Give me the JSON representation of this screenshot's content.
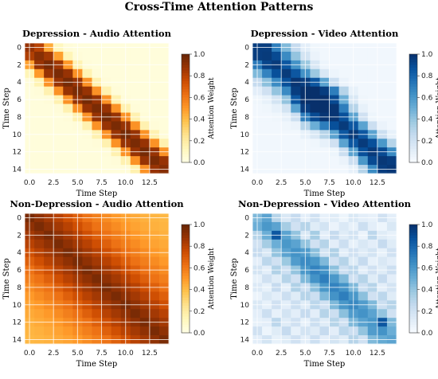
{
  "title": "Cross-Time Attention Patterns",
  "colorbar_label": "Attention Weight",
  "chart_data": [
    {
      "type": "heatmap",
      "title": "Depression - Audio Attention",
      "xlabel": "Time Step",
      "ylabel": "Time Step",
      "colormap": "YlOrBr",
      "x_ticks": [
        0.0,
        2.5,
        5.0,
        7.5,
        10.0,
        12.5
      ],
      "x_tick_labels": [
        "0.0",
        "2.5",
        "5.0",
        "7.5",
        "10.0",
        "12.5"
      ],
      "y_ticks": [
        0,
        2,
        4,
        6,
        8,
        10,
        12,
        14
      ],
      "y_tick_labels": [
        "0",
        "2",
        "4",
        "6",
        "8",
        "10",
        "12",
        "14"
      ],
      "colorbar_ticks": [
        "0.0",
        "0.2",
        "0.4",
        "0.6",
        "0.8",
        "1.0"
      ],
      "zlim": [
        0,
        1
      ],
      "grid": true,
      "values": [
        [
          0.88,
          0.8,
          0.45,
          0.12,
          0.04,
          0.03,
          0.03,
          0.03,
          0.03,
          0.03,
          0.03,
          0.03,
          0.03,
          0.03,
          0.03
        ],
        [
          0.82,
          0.92,
          0.85,
          0.48,
          0.14,
          0.04,
          0.03,
          0.03,
          0.03,
          0.03,
          0.03,
          0.03,
          0.03,
          0.03,
          0.03
        ],
        [
          0.48,
          0.88,
          0.95,
          0.86,
          0.5,
          0.15,
          0.04,
          0.03,
          0.03,
          0.03,
          0.03,
          0.03,
          0.03,
          0.03,
          0.03
        ],
        [
          0.14,
          0.5,
          0.88,
          0.95,
          0.88,
          0.52,
          0.15,
          0.04,
          0.03,
          0.03,
          0.03,
          0.03,
          0.03,
          0.03,
          0.03
        ],
        [
          0.04,
          0.15,
          0.52,
          0.88,
          0.96,
          0.88,
          0.52,
          0.16,
          0.04,
          0.03,
          0.03,
          0.03,
          0.03,
          0.03,
          0.03
        ],
        [
          0.03,
          0.04,
          0.16,
          0.52,
          0.88,
          0.95,
          0.88,
          0.52,
          0.16,
          0.04,
          0.03,
          0.03,
          0.03,
          0.03,
          0.03
        ],
        [
          0.03,
          0.03,
          0.04,
          0.16,
          0.52,
          0.88,
          0.96,
          0.88,
          0.52,
          0.16,
          0.04,
          0.03,
          0.03,
          0.03,
          0.03
        ],
        [
          0.03,
          0.03,
          0.03,
          0.04,
          0.16,
          0.52,
          0.88,
          0.95,
          0.88,
          0.52,
          0.16,
          0.04,
          0.03,
          0.03,
          0.03
        ],
        [
          0.03,
          0.03,
          0.03,
          0.03,
          0.04,
          0.16,
          0.52,
          0.88,
          0.96,
          0.88,
          0.52,
          0.16,
          0.04,
          0.03,
          0.03
        ],
        [
          0.03,
          0.03,
          0.03,
          0.03,
          0.03,
          0.04,
          0.16,
          0.52,
          0.88,
          0.95,
          0.88,
          0.52,
          0.16,
          0.04,
          0.03
        ],
        [
          0.03,
          0.03,
          0.03,
          0.03,
          0.03,
          0.03,
          0.04,
          0.16,
          0.52,
          0.88,
          0.96,
          0.88,
          0.52,
          0.16,
          0.04
        ],
        [
          0.03,
          0.03,
          0.03,
          0.03,
          0.03,
          0.03,
          0.03,
          0.04,
          0.16,
          0.52,
          0.88,
          0.95,
          0.88,
          0.52,
          0.16
        ],
        [
          0.03,
          0.03,
          0.03,
          0.03,
          0.03,
          0.03,
          0.03,
          0.03,
          0.04,
          0.16,
          0.52,
          0.88,
          0.96,
          0.88,
          0.52
        ],
        [
          0.03,
          0.03,
          0.03,
          0.03,
          0.03,
          0.03,
          0.03,
          0.03,
          0.03,
          0.04,
          0.16,
          0.52,
          0.88,
          0.95,
          0.88
        ],
        [
          0.03,
          0.03,
          0.03,
          0.03,
          0.03,
          0.03,
          0.03,
          0.03,
          0.03,
          0.03,
          0.04,
          0.16,
          0.52,
          0.88,
          0.92
        ]
      ]
    },
    {
      "type": "heatmap",
      "title": "Depression - Video Attention",
      "xlabel": "Time Step",
      "ylabel": "Time Step",
      "colormap": "Blues",
      "x_ticks": [
        0.0,
        2.5,
        5.0,
        7.5,
        10.0,
        12.5
      ],
      "x_tick_labels": [
        "0.0",
        "2.5",
        "5.0",
        "7.5",
        "10.0",
        "12.5"
      ],
      "y_ticks": [
        0,
        2,
        4,
        6,
        8,
        10,
        12,
        14
      ],
      "y_tick_labels": [
        "0",
        "2",
        "4",
        "6",
        "8",
        "10",
        "12",
        "14"
      ],
      "colorbar_ticks": [
        "0.0",
        "0.2",
        "0.4",
        "0.6",
        "0.8",
        "1.0"
      ],
      "zlim": [
        0,
        1
      ],
      "grid": true,
      "values": [
        [
          0.95,
          0.95,
          0.7,
          0.45,
          0.25,
          0.1,
          0.04,
          0.03,
          0.03,
          0.03,
          0.03,
          0.03,
          0.03,
          0.03,
          0.03
        ],
        [
          0.95,
          0.96,
          0.9,
          0.65,
          0.4,
          0.18,
          0.06,
          0.03,
          0.03,
          0.03,
          0.03,
          0.03,
          0.03,
          0.03,
          0.03
        ],
        [
          0.72,
          0.92,
          0.96,
          0.85,
          0.62,
          0.38,
          0.15,
          0.05,
          0.03,
          0.03,
          0.03,
          0.03,
          0.03,
          0.03,
          0.03
        ],
        [
          0.45,
          0.68,
          0.88,
          0.96,
          0.85,
          0.62,
          0.38,
          0.15,
          0.05,
          0.03,
          0.03,
          0.03,
          0.03,
          0.03,
          0.03
        ],
        [
          0.25,
          0.42,
          0.65,
          0.88,
          0.98,
          0.95,
          0.85,
          0.55,
          0.22,
          0.06,
          0.03,
          0.03,
          0.03,
          0.03,
          0.03
        ],
        [
          0.1,
          0.2,
          0.4,
          0.65,
          0.95,
          1.0,
          1.0,
          0.95,
          0.7,
          0.3,
          0.08,
          0.03,
          0.03,
          0.03,
          0.03
        ],
        [
          0.04,
          0.08,
          0.18,
          0.4,
          0.85,
          1.0,
          1.0,
          1.0,
          0.9,
          0.5,
          0.15,
          0.04,
          0.03,
          0.03,
          0.03
        ],
        [
          0.03,
          0.04,
          0.08,
          0.18,
          0.55,
          0.95,
          1.0,
          1.0,
          0.98,
          0.7,
          0.3,
          0.08,
          0.03,
          0.03,
          0.03
        ],
        [
          0.03,
          0.03,
          0.04,
          0.08,
          0.22,
          0.7,
          0.9,
          0.98,
          0.98,
          0.88,
          0.55,
          0.2,
          0.05,
          0.03,
          0.03
        ],
        [
          0.03,
          0.03,
          0.03,
          0.04,
          0.06,
          0.3,
          0.5,
          0.7,
          0.88,
          0.96,
          0.85,
          0.55,
          0.22,
          0.06,
          0.03
        ],
        [
          0.03,
          0.03,
          0.03,
          0.03,
          0.03,
          0.08,
          0.15,
          0.3,
          0.55,
          0.85,
          0.96,
          0.85,
          0.55,
          0.22,
          0.08
        ],
        [
          0.03,
          0.03,
          0.03,
          0.03,
          0.03,
          0.03,
          0.04,
          0.08,
          0.2,
          0.55,
          0.85,
          0.96,
          0.88,
          0.6,
          0.3
        ],
        [
          0.03,
          0.03,
          0.03,
          0.03,
          0.03,
          0.03,
          0.03,
          0.03,
          0.05,
          0.22,
          0.55,
          0.88,
          0.96,
          0.9,
          0.65
        ],
        [
          0.03,
          0.03,
          0.03,
          0.03,
          0.03,
          0.03,
          0.03,
          0.03,
          0.03,
          0.06,
          0.22,
          0.6,
          0.9,
          0.97,
          0.95
        ],
        [
          0.03,
          0.03,
          0.03,
          0.03,
          0.03,
          0.03,
          0.03,
          0.03,
          0.03,
          0.03,
          0.08,
          0.3,
          0.65,
          0.95,
          0.97
        ]
      ]
    },
    {
      "type": "heatmap",
      "title": "Non-Depression - Audio Attention",
      "xlabel": "Time Step",
      "ylabel": "Time Step",
      "colormap": "YlOrBr",
      "x_ticks": [
        0.0,
        2.5,
        5.0,
        7.5,
        10.0,
        12.5
      ],
      "x_tick_labels": [
        "0.0",
        "2.5",
        "5.0",
        "7.5",
        "10.0",
        "12.5"
      ],
      "y_ticks": [
        0,
        2,
        4,
        6,
        8,
        10,
        12,
        14
      ],
      "y_tick_labels": [
        "0",
        "2",
        "4",
        "6",
        "8",
        "10",
        "12",
        "14"
      ],
      "colorbar_ticks": [
        "0.0",
        "0.2",
        "0.4",
        "0.6",
        "0.8",
        "1.0"
      ],
      "zlim": [
        0,
        1
      ],
      "grid": true,
      "values": [
        [
          0.95,
          0.9,
          0.85,
          0.8,
          0.74,
          0.68,
          0.62,
          0.58,
          0.54,
          0.5,
          0.47,
          0.45,
          0.43,
          0.42,
          0.41
        ],
        [
          0.9,
          0.95,
          0.9,
          0.85,
          0.8,
          0.74,
          0.68,
          0.62,
          0.58,
          0.54,
          0.5,
          0.47,
          0.45,
          0.43,
          0.42
        ],
        [
          0.85,
          0.9,
          0.95,
          0.9,
          0.85,
          0.8,
          0.74,
          0.68,
          0.62,
          0.58,
          0.54,
          0.5,
          0.47,
          0.45,
          0.43
        ],
        [
          0.8,
          0.85,
          0.9,
          0.95,
          0.9,
          0.85,
          0.8,
          0.74,
          0.68,
          0.62,
          0.58,
          0.54,
          0.5,
          0.47,
          0.45
        ],
        [
          0.74,
          0.8,
          0.85,
          0.9,
          0.95,
          0.9,
          0.85,
          0.8,
          0.74,
          0.68,
          0.62,
          0.58,
          0.54,
          0.5,
          0.47
        ],
        [
          0.68,
          0.74,
          0.8,
          0.85,
          0.9,
          0.95,
          0.9,
          0.85,
          0.8,
          0.74,
          0.68,
          0.62,
          0.58,
          0.54,
          0.5
        ],
        [
          0.62,
          0.68,
          0.74,
          0.8,
          0.85,
          0.9,
          0.95,
          0.9,
          0.85,
          0.8,
          0.74,
          0.68,
          0.62,
          0.58,
          0.54
        ],
        [
          0.58,
          0.62,
          0.68,
          0.74,
          0.8,
          0.85,
          0.9,
          0.95,
          0.9,
          0.85,
          0.8,
          0.74,
          0.68,
          0.62,
          0.58
        ],
        [
          0.54,
          0.58,
          0.62,
          0.68,
          0.74,
          0.8,
          0.85,
          0.9,
          0.95,
          0.9,
          0.85,
          0.8,
          0.74,
          0.68,
          0.62
        ],
        [
          0.5,
          0.54,
          0.58,
          0.62,
          0.68,
          0.74,
          0.8,
          0.85,
          0.9,
          0.95,
          0.9,
          0.85,
          0.8,
          0.74,
          0.68
        ],
        [
          0.47,
          0.5,
          0.54,
          0.58,
          0.62,
          0.68,
          0.74,
          0.8,
          0.85,
          0.9,
          0.95,
          0.9,
          0.85,
          0.8,
          0.74
        ],
        [
          0.45,
          0.47,
          0.5,
          0.54,
          0.58,
          0.62,
          0.68,
          0.74,
          0.8,
          0.85,
          0.9,
          0.95,
          0.9,
          0.85,
          0.8
        ],
        [
          0.43,
          0.45,
          0.47,
          0.5,
          0.54,
          0.58,
          0.62,
          0.68,
          0.74,
          0.8,
          0.85,
          0.9,
          0.95,
          0.9,
          0.85
        ],
        [
          0.42,
          0.43,
          0.45,
          0.47,
          0.5,
          0.54,
          0.58,
          0.62,
          0.68,
          0.74,
          0.8,
          0.85,
          0.9,
          0.95,
          0.9
        ],
        [
          0.41,
          0.42,
          0.43,
          0.45,
          0.47,
          0.5,
          0.54,
          0.58,
          0.62,
          0.68,
          0.74,
          0.8,
          0.85,
          0.9,
          0.95
        ]
      ]
    },
    {
      "type": "heatmap",
      "title": "Non-Depression - Video Attention",
      "xlabel": "Time Step",
      "ylabel": "Time Step",
      "colormap": "Blues",
      "x_ticks": [
        0.0,
        2.5,
        5.0,
        7.5,
        10.0,
        12.5
      ],
      "x_tick_labels": [
        "0.0",
        "2.5",
        "5.0",
        "7.5",
        "10.0",
        "12.5"
      ],
      "y_ticks": [
        0,
        2,
        4,
        6,
        8,
        10,
        12,
        14
      ],
      "y_tick_labels": [
        "0",
        "2",
        "4",
        "6",
        "8",
        "10",
        "12",
        "14"
      ],
      "colorbar_ticks": [
        "0.0",
        "0.2",
        "0.4",
        "0.6",
        "0.8",
        "1.0"
      ],
      "zlim": [
        0,
        1
      ],
      "grid": true,
      "values": [
        [
          0.45,
          0.55,
          0.3,
          0.15,
          0.25,
          0.1,
          0.2,
          0.08,
          0.12,
          0.05,
          0.15,
          0.1,
          0.08,
          0.2,
          0.1
        ],
        [
          0.5,
          0.6,
          0.55,
          0.35,
          0.2,
          0.3,
          0.12,
          0.18,
          0.06,
          0.14,
          0.08,
          0.22,
          0.1,
          0.05,
          0.15
        ],
        [
          0.3,
          0.5,
          0.85,
          0.55,
          0.4,
          0.15,
          0.35,
          0.1,
          0.25,
          0.12,
          0.18,
          0.06,
          0.28,
          0.12,
          0.08
        ],
        [
          0.2,
          0.35,
          0.5,
          0.6,
          0.55,
          0.4,
          0.2,
          0.3,
          0.1,
          0.22,
          0.08,
          0.15,
          0.1,
          0.25,
          0.12
        ],
        [
          0.25,
          0.15,
          0.4,
          0.55,
          0.62,
          0.58,
          0.42,
          0.18,
          0.32,
          0.1,
          0.2,
          0.12,
          0.18,
          0.08,
          0.2
        ],
        [
          0.1,
          0.28,
          0.2,
          0.38,
          0.58,
          0.65,
          0.6,
          0.45,
          0.2,
          0.3,
          0.12,
          0.25,
          0.08,
          0.15,
          0.1
        ],
        [
          0.18,
          0.1,
          0.32,
          0.22,
          0.4,
          0.6,
          0.68,
          0.62,
          0.42,
          0.22,
          0.28,
          0.1,
          0.2,
          0.12,
          0.22
        ],
        [
          0.08,
          0.2,
          0.12,
          0.3,
          0.2,
          0.45,
          0.62,
          0.7,
          0.6,
          0.45,
          0.2,
          0.3,
          0.12,
          0.25,
          0.1
        ],
        [
          0.14,
          0.08,
          0.25,
          0.1,
          0.32,
          0.22,
          0.42,
          0.6,
          0.68,
          0.62,
          0.45,
          0.22,
          0.3,
          0.1,
          0.18
        ],
        [
          0.06,
          0.15,
          0.1,
          0.22,
          0.12,
          0.3,
          0.22,
          0.45,
          0.62,
          0.7,
          0.6,
          0.42,
          0.2,
          0.28,
          0.12
        ],
        [
          0.15,
          0.08,
          0.2,
          0.1,
          0.22,
          0.12,
          0.28,
          0.2,
          0.45,
          0.6,
          0.66,
          0.58,
          0.45,
          0.22,
          0.3
        ],
        [
          0.1,
          0.22,
          0.08,
          0.18,
          0.1,
          0.25,
          0.1,
          0.3,
          0.22,
          0.42,
          0.58,
          0.62,
          0.55,
          0.4,
          0.2
        ],
        [
          0.08,
          0.1,
          0.28,
          0.12,
          0.2,
          0.08,
          0.22,
          0.12,
          0.3,
          0.2,
          0.45,
          0.55,
          0.6,
          0.85,
          0.45
        ],
        [
          0.2,
          0.05,
          0.12,
          0.25,
          0.08,
          0.18,
          0.12,
          0.25,
          0.1,
          0.28,
          0.22,
          0.4,
          0.58,
          0.62,
          0.5
        ],
        [
          0.1,
          0.18,
          0.08,
          0.12,
          0.2,
          0.1,
          0.22,
          0.1,
          0.18,
          0.12,
          0.3,
          0.2,
          0.45,
          0.52,
          0.55
        ]
      ]
    }
  ]
}
